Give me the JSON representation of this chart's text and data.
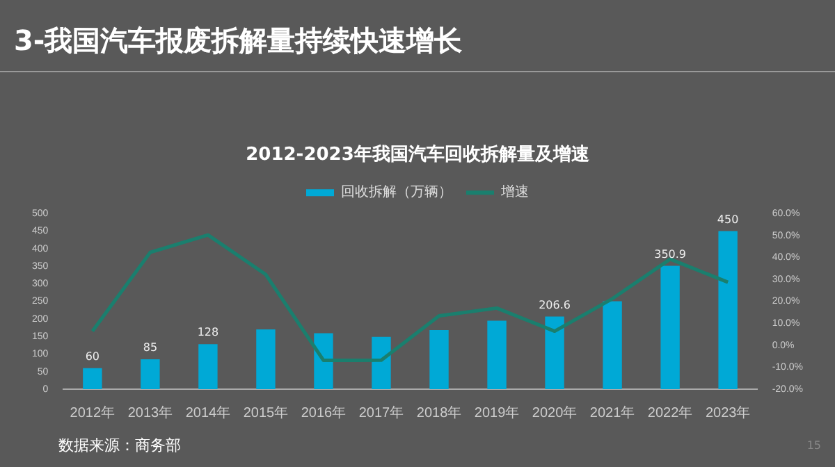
{
  "chart_data": {
    "type": "bar",
    "title": "3-我国汽车报废拆解量持续快速增长",
    "subtitle": "2012-2023年我国汽车回收拆解量及增速",
    "categories": [
      "2012年",
      "2013年",
      "2014年",
      "2015年",
      "2016年",
      "2017年",
      "2018年",
      "2019年",
      "2020年",
      "2021年",
      "2022年",
      "2023年"
    ],
    "series": [
      {
        "name": "回收拆解（万辆）",
        "color": "#00a9d6",
        "values": [
          60,
          85,
          128,
          170,
          159,
          149,
          168,
          195,
          206.6,
          250,
          350.9,
          450
        ],
        "value_labels": [
          "60",
          "85",
          "128",
          null,
          null,
          null,
          null,
          null,
          "206.6",
          null,
          "350.9",
          "450"
        ]
      },
      {
        "name": "增速",
        "type": "line",
        "axis": "y2",
        "color": "#1a7f6e",
        "values": [
          6.4,
          42.3,
          50.2,
          32.2,
          -6.9,
          -6.8,
          13.4,
          16.9,
          6.4,
          21.2,
          39.2,
          28.7
        ]
      }
    ],
    "ylim": [
      0,
      500
    ],
    "yticks": [
      0,
      50,
      100,
      150,
      200,
      250,
      300,
      350,
      400,
      450,
      500
    ],
    "y2lim": [
      -20,
      60
    ],
    "y2ticks": [
      {
        "value": -20,
        "label": "-20.0%"
      },
      {
        "value": -10,
        "label": "-10.0%"
      },
      {
        "value": 0,
        "label": "0.0%"
      },
      {
        "value": 10,
        "label": "10.0%"
      },
      {
        "value": 20,
        "label": "20.0%"
      },
      {
        "value": 30,
        "label": "30.0%"
      },
      {
        "value": 40,
        "label": "40.0%"
      },
      {
        "value": 50,
        "label": "50.0%"
      },
      {
        "value": 60,
        "label": "60.0%"
      }
    ],
    "grid": false,
    "legend": "top",
    "marker": "none",
    "line_style": "solid",
    "annotations": [
      "数据来源：商务部",
      "15"
    ]
  }
}
